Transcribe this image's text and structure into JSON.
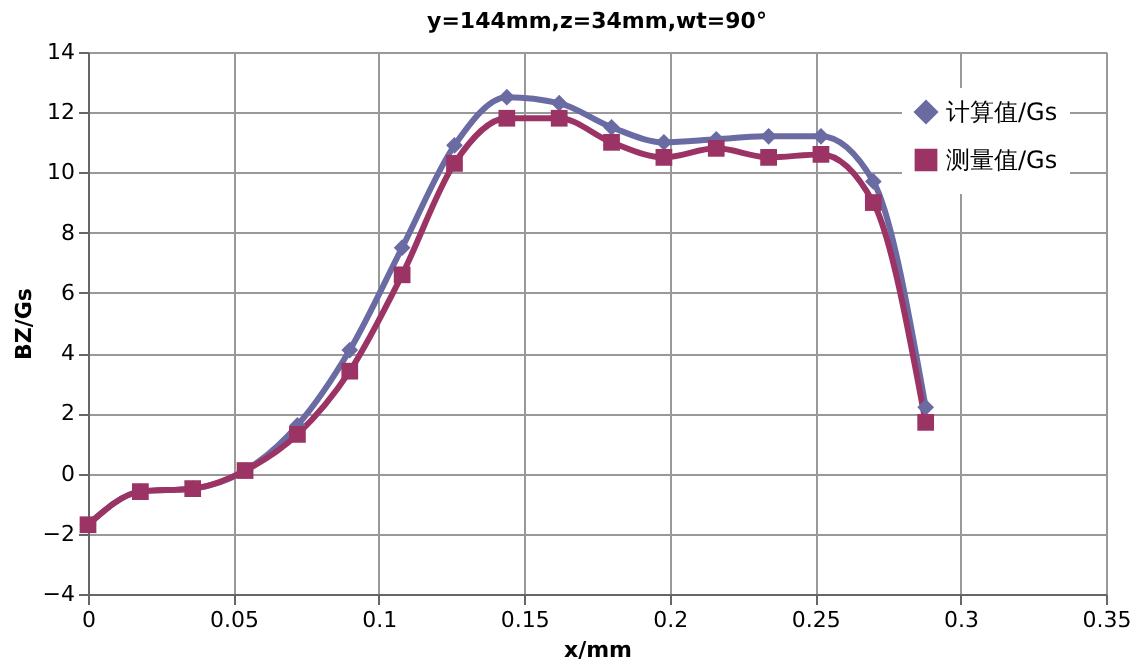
{
  "chart_data": {
    "type": "line",
    "title": "y=144mm,z=34mm,wt=90°",
    "xlabel": "x/mm",
    "ylabel": "BZ/Gs",
    "x": [
      0,
      0.018,
      0.036,
      0.054,
      0.072,
      0.09,
      0.108,
      0.126,
      0.144,
      0.162,
      0.18,
      0.198,
      0.216,
      0.234,
      0.252,
      0.27,
      0.288
    ],
    "series": [
      {
        "name": "计算值/Gs",
        "color": "#6b6ba3",
        "marker": "diamond",
        "values": [
          -1.7,
          -0.6,
          -0.5,
          0.1,
          1.6,
          4.1,
          7.5,
          10.9,
          12.5,
          12.3,
          11.5,
          11.0,
          11.1,
          11.2,
          11.2,
          9.7,
          2.2
        ]
      },
      {
        "name": "测量值/Gs",
        "color": "#9b3464",
        "marker": "square",
        "values": [
          -1.7,
          -0.6,
          -0.5,
          0.1,
          1.3,
          3.4,
          6.6,
          10.3,
          11.8,
          11.8,
          11.0,
          10.5,
          10.8,
          10.5,
          10.6,
          9.0,
          1.7
        ]
      }
    ],
    "xlim": [
      0,
      0.35
    ],
    "xticks": [
      0,
      0.05,
      0.1,
      0.15,
      0.2,
      0.25,
      0.3,
      0.35
    ],
    "ylim": [
      -4,
      14
    ],
    "yticks": [
      -4,
      -2,
      0,
      2,
      4,
      6,
      8,
      10,
      12,
      14
    ],
    "grid": true,
    "legend": "top right",
    "line_style": "solid"
  }
}
